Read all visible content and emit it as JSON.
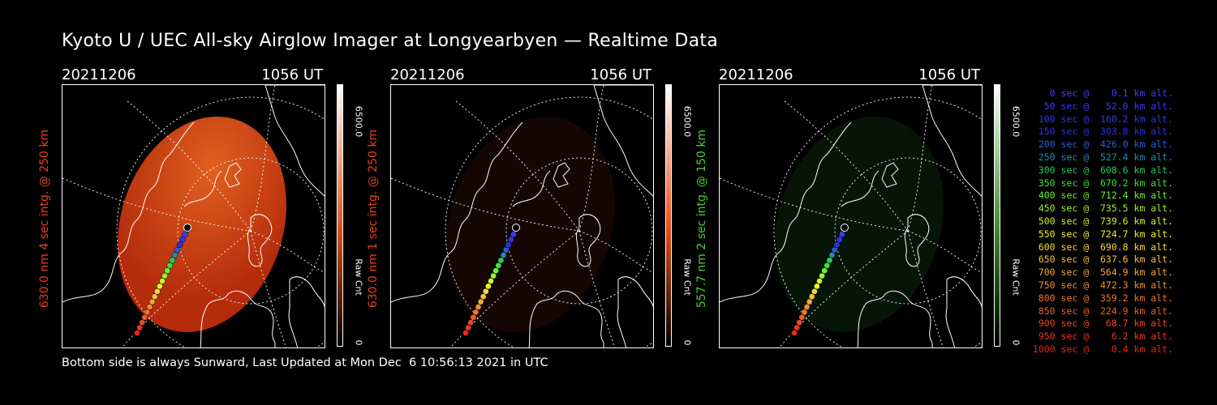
{
  "title": "Kyoto U / UEC All-sky Airglow Imager at Longyearbyen — Realtime Data",
  "footer": "Bottom side is always Sunward, Last Updated at Mon Dec  6 10:56:13 2021 in UTC",
  "colors": {
    "background": "#000000",
    "red_channel": "#e8401c",
    "green_channel": "#52c93a"
  },
  "panels": [
    {
      "date": "20211206",
      "time": "1056 UT",
      "side_label": "630.0 nm 4 sec intg. @ 250 km",
      "label_color": "#e8401c",
      "colorbar_max": "6500.0",
      "colorbar_min": "0",
      "colorbar_unit": "Raw Cnt",
      "colorbar_color": "#e0501a",
      "emission_fill": "#b52c0c",
      "emission_brightness": 1.0
    },
    {
      "date": "20211206",
      "time": "1056 UT",
      "side_label": "630.0 nm 1 sec intg. @ 250 km",
      "label_color": "#e8401c",
      "colorbar_max": "6500.0",
      "colorbar_min": "0",
      "colorbar_unit": "Raw Cnt",
      "colorbar_color": "#e0501a",
      "emission_fill": "#3a1208",
      "emission_brightness": 0.35
    },
    {
      "date": "20211206",
      "time": "1056 UT",
      "side_label": "557.7 nm 2 sec intg. @ 150 km",
      "label_color": "#52c93a",
      "colorbar_max": "6500.0",
      "colorbar_min": "0",
      "colorbar_unit": "Raw Cnt",
      "colorbar_color": "#3d8a2a",
      "emission_fill": "#123d10",
      "emission_brightness": 0.35
    }
  ],
  "legend": [
    {
      "text": "0 sec @    0.1 km alt.",
      "color": "#4040ff"
    },
    {
      "text": "50 sec @   52.0 km alt.",
      "color": "#3b3bf0"
    },
    {
      "text": "100 sec @  160.2 km alt.",
      "color": "#3535e6"
    },
    {
      "text": "150 sec @  303.8 km alt.",
      "color": "#3030dd"
    },
    {
      "text": "200 sec @  426.0 km alt.",
      "color": "#2a5ed8"
    },
    {
      "text": "250 sec @  527.4 km alt.",
      "color": "#258ca8"
    },
    {
      "text": "300 sec @  608.6 km alt.",
      "color": "#2ec85a"
    },
    {
      "text": "350 sec @  670.2 km alt.",
      "color": "#3ee03a"
    },
    {
      "text": "400 sec @  712.4 km alt.",
      "color": "#6cf02e"
    },
    {
      "text": "450 sec @  735.5 km alt.",
      "color": "#9ef02a"
    },
    {
      "text": "500 sec @  739.6 km alt.",
      "color": "#d0f028"
    },
    {
      "text": "550 sec @  724.7 km alt.",
      "color": "#f0f02a"
    },
    {
      "text": "600 sec @  690.8 km alt.",
      "color": "#f5d83a"
    },
    {
      "text": "650 sec @  637.6 km alt.",
      "color": "#f5c040"
    },
    {
      "text": "700 sec @  564.9 km alt.",
      "color": "#f0a838"
    },
    {
      "text": "750 sec @  472.3 km alt.",
      "color": "#ee9030"
    },
    {
      "text": "800 sec @  359.2 km alt.",
      "color": "#ec782c"
    },
    {
      "text": "850 sec @  224.9 km alt.",
      "color": "#ea6028"
    },
    {
      "text": "900 sec @   68.7 km alt.",
      "color": "#e84a24"
    },
    {
      "text": "950 sec @    6.2 km alt.",
      "color": "#e63820"
    },
    {
      "text": "1000 sec @    0.4 km alt.",
      "color": "#e4281c"
    }
  ]
}
